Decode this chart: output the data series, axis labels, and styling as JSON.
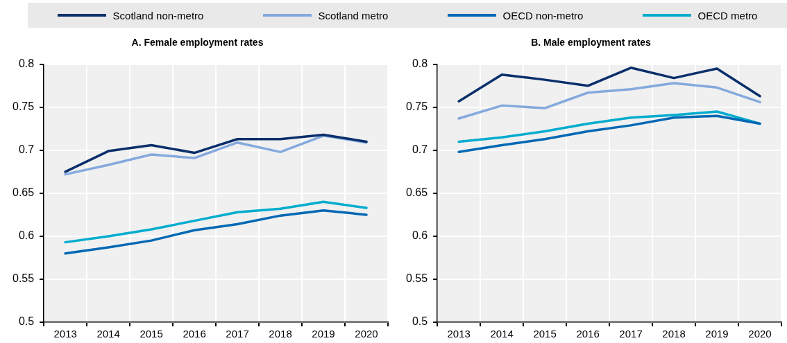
{
  "chart_data": [
    {
      "type": "line",
      "title": "A. Female employment rates",
      "categories": [
        "2013",
        "2014",
        "2015",
        "2016",
        "2017",
        "2018",
        "2019",
        "2020"
      ],
      "ylim": [
        0.5,
        0.8
      ],
      "yticks": [
        0.5,
        0.55,
        0.6,
        0.65,
        0.7,
        0.75,
        0.8
      ],
      "grid": true,
      "legend": "top",
      "marker": "none",
      "line_style": "solid",
      "series": [
        {
          "name": "Scotland non-metro",
          "color": "#0a2f6b",
          "values": [
            0.675,
            0.699,
            0.706,
            0.697,
            0.713,
            0.713,
            0.718,
            0.71
          ]
        },
        {
          "name": "Scotland metro",
          "color": "#84a9dd",
          "values": [
            0.672,
            0.683,
            0.695,
            0.691,
            0.709,
            0.698,
            0.717,
            0.709
          ]
        },
        {
          "name": "OECD non-metro",
          "color": "#0068b4",
          "values": [
            0.58,
            0.587,
            0.595,
            0.607,
            0.614,
            0.624,
            0.63,
            0.625
          ]
        },
        {
          "name": "OECD metro",
          "color": "#00acce",
          "values": [
            0.593,
            0.6,
            0.608,
            0.618,
            0.628,
            0.632,
            0.64,
            0.633
          ]
        }
      ]
    },
    {
      "type": "line",
      "title": "B. Male employment rates",
      "categories": [
        "2013",
        "2014",
        "2015",
        "2016",
        "2017",
        "2018",
        "2019",
        "2020"
      ],
      "ylim": [
        0.5,
        0.8
      ],
      "yticks": [
        0.5,
        0.55,
        0.6,
        0.65,
        0.7,
        0.75,
        0.8
      ],
      "grid": true,
      "legend": "top",
      "marker": "none",
      "line_style": "solid",
      "series": [
        {
          "name": "Scotland non-metro",
          "color": "#0a2f6b",
          "values": [
            0.757,
            0.788,
            0.782,
            0.775,
            0.796,
            0.784,
            0.795,
            0.763
          ]
        },
        {
          "name": "Scotland metro",
          "color": "#84a9dd",
          "values": [
            0.737,
            0.752,
            0.749,
            0.767,
            0.771,
            0.778,
            0.773,
            0.756
          ]
        },
        {
          "name": "OECD non-metro",
          "color": "#0068b4",
          "values": [
            0.698,
            0.706,
            0.713,
            0.722,
            0.729,
            0.738,
            0.74,
            0.731
          ]
        },
        {
          "name": "OECD metro",
          "color": "#00acce",
          "values": [
            0.71,
            0.715,
            0.722,
            0.731,
            0.738,
            0.741,
            0.745,
            0.731
          ]
        }
      ]
    }
  ]
}
